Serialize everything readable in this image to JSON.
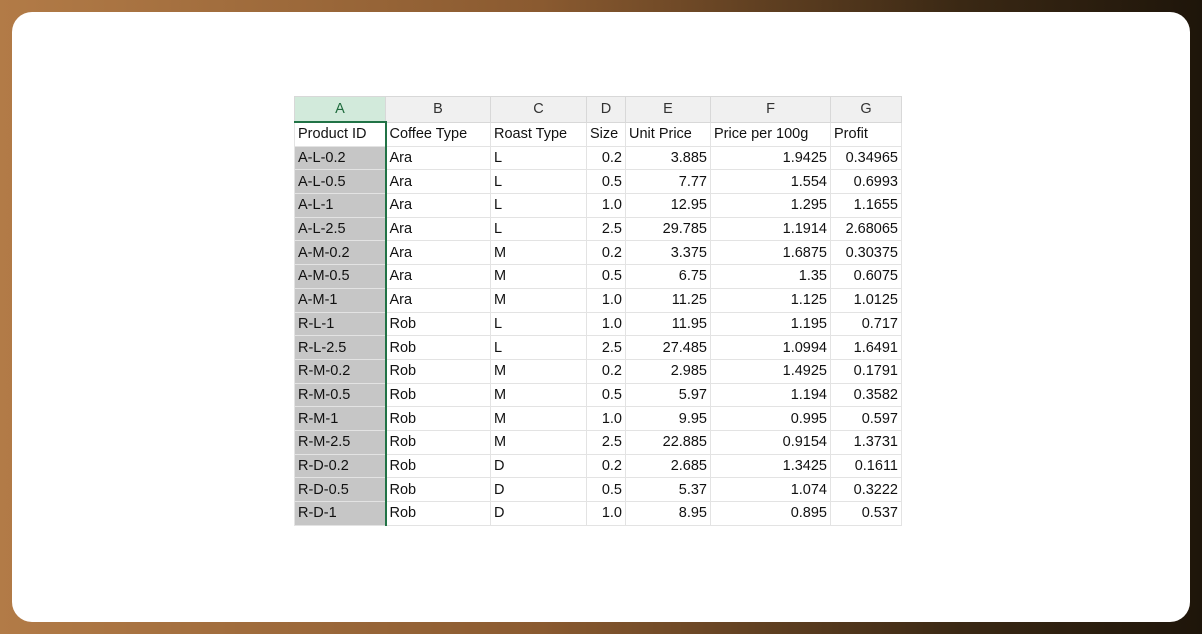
{
  "columns": [
    "A",
    "B",
    "C",
    "D",
    "E",
    "F",
    "G"
  ],
  "headers": [
    "Product ID",
    "Coffee Type",
    "Roast Type",
    "Size",
    "Unit Price",
    "Price per 100g",
    "Profit"
  ],
  "rows": [
    [
      "A-L-0.2",
      "Ara",
      "L",
      "0.2",
      "3.885",
      "1.9425",
      "0.34965"
    ],
    [
      "A-L-0.5",
      "Ara",
      "L",
      "0.5",
      "7.77",
      "1.554",
      "0.6993"
    ],
    [
      "A-L-1",
      "Ara",
      "L",
      "1.0",
      "12.95",
      "1.295",
      "1.1655"
    ],
    [
      "A-L-2.5",
      "Ara",
      "L",
      "2.5",
      "29.785",
      "1.1914",
      "2.68065"
    ],
    [
      "A-M-0.2",
      "Ara",
      "M",
      "0.2",
      "3.375",
      "1.6875",
      "0.30375"
    ],
    [
      "A-M-0.5",
      "Ara",
      "M",
      "0.5",
      "6.75",
      "1.35",
      "0.6075"
    ],
    [
      "A-M-1",
      "Ara",
      "M",
      "1.0",
      "11.25",
      "1.125",
      "1.0125"
    ],
    [
      "R-L-1",
      "Rob",
      "L",
      "1.0",
      "11.95",
      "1.195",
      "0.717"
    ],
    [
      "R-L-2.5",
      "Rob",
      "L",
      "2.5",
      "27.485",
      "1.0994",
      "1.6491"
    ],
    [
      "R-M-0.2",
      "Rob",
      "M",
      "0.2",
      "2.985",
      "1.4925",
      "0.1791"
    ],
    [
      "R-M-0.5",
      "Rob",
      "M",
      "0.5",
      "5.97",
      "1.194",
      "0.3582"
    ],
    [
      "R-M-1",
      "Rob",
      "M",
      "1.0",
      "9.95",
      "0.995",
      "0.597"
    ],
    [
      "R-M-2.5",
      "Rob",
      "M",
      "2.5",
      "22.885",
      "0.9154",
      "1.3731"
    ],
    [
      "R-D-0.2",
      "Rob",
      "D",
      "0.2",
      "2.685",
      "1.3425",
      "0.1611"
    ],
    [
      "R-D-0.5",
      "Rob",
      "D",
      "0.5",
      "5.37",
      "1.074",
      "0.3222"
    ],
    [
      "R-D-1",
      "Rob",
      "D",
      "1.0",
      "8.95",
      "0.895",
      "0.537"
    ]
  ],
  "selected_column": "A",
  "colors": {
    "selection_accent": "#217346",
    "selection_fill": "#c6c6c6"
  }
}
